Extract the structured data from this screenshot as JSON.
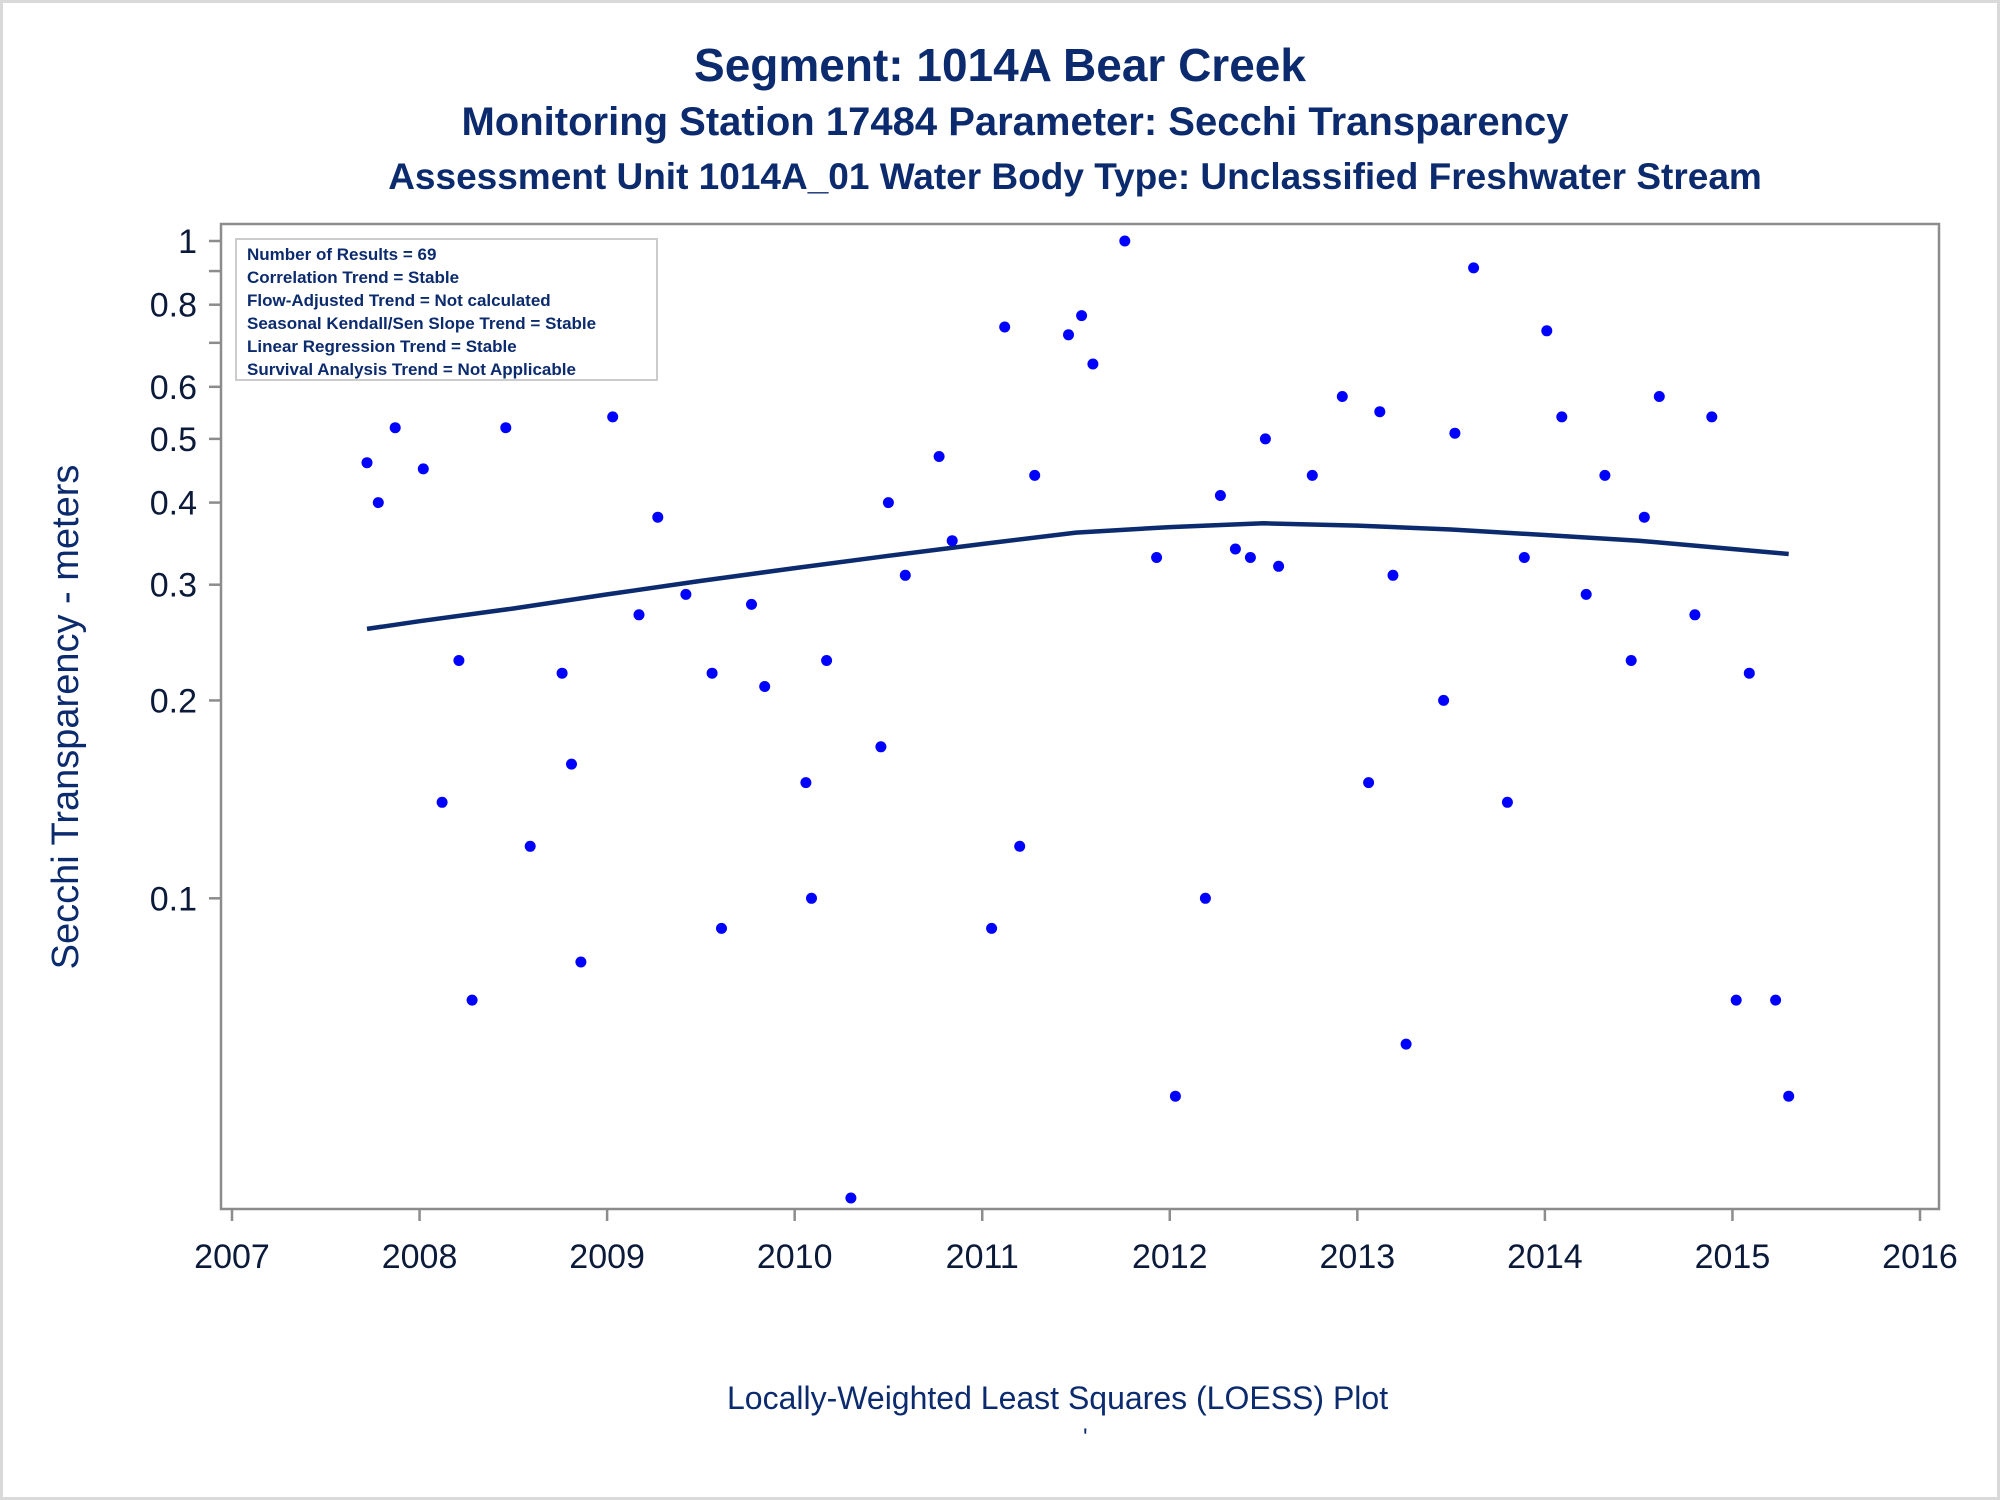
{
  "chart_data": {
    "type": "scatter",
    "title": "Segment: 1014A  Bear Creek",
    "subtitle": "Monitoring Station 17484 Parameter: Secchi Transparency",
    "subtitle2": "Assessment Unit 1014A_01   Water Body Type: Unclassified Freshwater Stream",
    "xlabel": "",
    "ylabel": "Secchi Transparency - meters",
    "footnote": "Locally-Weighted Least Squares (LOESS) Plot",
    "footnote_mark": "'",
    "y_scale": "log",
    "xlim": [
      2007,
      2016
    ],
    "ylim": [
      0.035,
      1.0
    ],
    "x_ticks": [
      2007,
      2008,
      2009,
      2010,
      2011,
      2012,
      2013,
      2014,
      2015,
      2016
    ],
    "y_ticks": [
      0.1,
      0.2,
      0.3,
      0.4,
      0.5,
      0.6,
      0.8,
      1
    ],
    "y_tick_labels": [
      "0.1",
      "0.2",
      "0.3",
      "0.4",
      "0.5",
      "0.6",
      "0.8",
      "1"
    ],
    "y_minor_ticks": [
      0.7,
      0.9
    ],
    "grid": false,
    "legend_placement": "top-left",
    "legend": [
      "Number of Results = 69",
      "Correlation Trend = Stable",
      "Flow-Adjusted Trend = Not calculated",
      "Seasonal Kendall/Sen Slope Trend = Stable",
      "Linear Regression Trend = Stable",
      "Survival Analysis Trend = Not Applicable"
    ],
    "colors": {
      "points": "#0000ff",
      "loess": "#0c2b6e",
      "text": "#0c2b6e",
      "axis": "#8c8c8c"
    },
    "series": [
      {
        "type": "scatter",
        "x": [
          2007.72,
          2007.78,
          2007.87,
          2008.02,
          2008.12,
          2008.21,
          2008.28,
          2008.46,
          2008.59,
          2008.76,
          2008.81,
          2008.86,
          2009.03,
          2009.17,
          2009.27,
          2009.42,
          2009.56,
          2009.61,
          2009.77,
          2009.84,
          2010.06,
          2010.09,
          2010.17,
          2010.3,
          2010.46,
          2010.5,
          2010.59,
          2010.77,
          2010.84,
          2011.05,
          2011.12,
          2011.2,
          2011.28,
          2011.46,
          2011.53,
          2011.59,
          2011.76,
          2011.93,
          2012.03,
          2012.19,
          2012.27,
          2012.35,
          2012.43,
          2012.51,
          2012.58,
          2012.76,
          2012.92,
          2013.06,
          2013.12,
          2013.19,
          2013.26,
          2013.46,
          2013.52,
          2013.62,
          2013.8,
          2013.89,
          2014.01,
          2014.09,
          2014.22,
          2014.32,
          2014.46,
          2014.53,
          2014.61,
          2014.8,
          2014.89,
          2015.02,
          2015.09,
          2015.23,
          2015.3
        ],
        "y": [
          0.46,
          0.4,
          0.52,
          0.45,
          0.14,
          0.23,
          0.07,
          0.52,
          0.12,
          0.22,
          0.16,
          0.08,
          0.54,
          0.27,
          0.38,
          0.29,
          0.22,
          0.09,
          0.28,
          0.21,
          0.15,
          0.1,
          0.23,
          0.035,
          0.17,
          0.4,
          0.31,
          0.47,
          0.35,
          0.09,
          0.74,
          0.12,
          0.44,
          0.72,
          0.77,
          0.65,
          1.0,
          0.33,
          0.05,
          0.1,
          0.41,
          0.34,
          0.33,
          0.5,
          0.32,
          0.44,
          0.58,
          0.15,
          0.55,
          0.31,
          0.06,
          0.2,
          0.51,
          0.91,
          0.14,
          0.33,
          0.73,
          0.54,
          0.29,
          0.44,
          0.23,
          0.38,
          0.58,
          0.27,
          0.54,
          0.07,
          0.22,
          0.07,
          0.05
        ]
      },
      {
        "type": "line",
        "name": "LOESS",
        "x": [
          2007.72,
          2008.0,
          2008.5,
          2009.0,
          2009.5,
          2010.0,
          2010.5,
          2011.0,
          2011.5,
          2012.0,
          2012.5,
          2013.0,
          2013.5,
          2014.0,
          2014.5,
          2015.0,
          2015.3
        ],
        "y": [
          0.257,
          0.264,
          0.276,
          0.29,
          0.304,
          0.318,
          0.332,
          0.346,
          0.36,
          0.367,
          0.372,
          0.369,
          0.364,
          0.357,
          0.35,
          0.34,
          0.334
        ]
      }
    ]
  }
}
